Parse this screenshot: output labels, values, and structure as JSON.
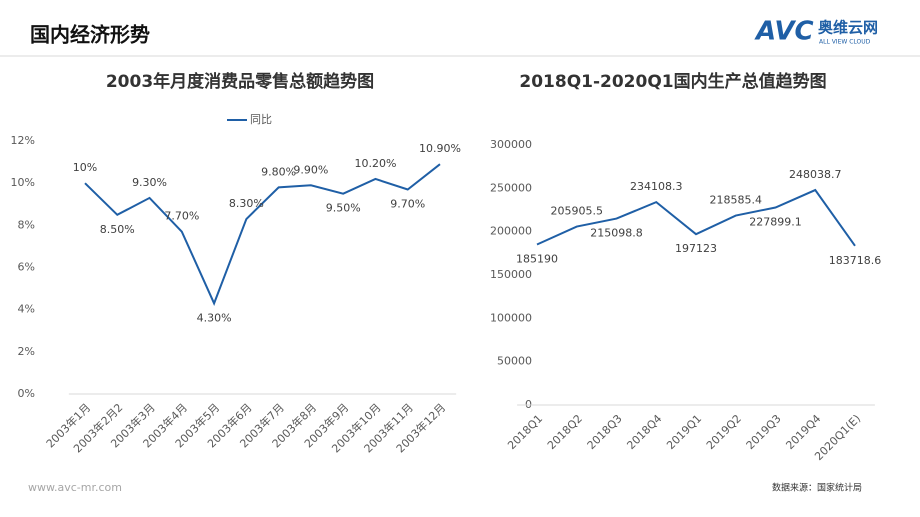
{
  "header": {
    "title": "国内经济形势",
    "logo": "AVC",
    "logo_cn": "奥维云网",
    "logo_en": "ALL VIEW CLOUD"
  },
  "chart_data": [
    {
      "type": "line",
      "title": "2003年月度消费品零售总额趋势图",
      "categories": [
        "2003年1月",
        "2003年2月2",
        "2003年3月",
        "2003年4月",
        "2003年5月",
        "2003年6月",
        "2003年7月",
        "2003年8月",
        "2003年9月",
        "2003年10月",
        "2003年11月",
        "2003年12月"
      ],
      "series": [
        {
          "name": "同比",
          "color": "#1f5fa6",
          "values": [
            10,
            8.5,
            9.3,
            7.7,
            4.3,
            8.3,
            9.8,
            9.9,
            9.5,
            10.2,
            9.7,
            10.9
          ],
          "value_labels": [
            "10%",
            "8.50%",
            "9.30%",
            "7.70%",
            "4.30%",
            "8.30%",
            "9.80%",
            "9.90%",
            "9.50%",
            "10.20%",
            "9.70%",
            "10.90%"
          ]
        }
      ],
      "ylim": [
        0,
        12
      ],
      "yticks": [
        {
          "value": 0,
          "label": "0%"
        },
        {
          "value": 2,
          "label": "2%"
        },
        {
          "value": 4,
          "label": "4%"
        },
        {
          "value": 6,
          "label": "6%"
        },
        {
          "value": 8,
          "label": "8%"
        },
        {
          "value": 10,
          "label": "10%"
        },
        {
          "value": 12,
          "label": "12%"
        }
      ],
      "legend": "top"
    },
    {
      "type": "line",
      "title": "2018Q1-2020Q1国内生产总值趋势图",
      "categories": [
        "2018Q1",
        "2018Q2",
        "2018Q3",
        "2018Q4",
        "2019Q1",
        "2019Q2",
        "2019Q3",
        "2019Q4",
        "2020Q1(E)"
      ],
      "series": [
        {
          "color": "#1f5fa6",
          "values": [
            185190,
            205905.5,
            215098.8,
            234108.3,
            197123,
            218585.4,
            227899.1,
            248038.7,
            183718.6
          ]
        }
      ],
      "ylim": [
        0,
        300000
      ],
      "yticks": [
        0,
        50000,
        100000,
        150000,
        200000,
        250000,
        300000
      ]
    }
  ],
  "footer": {
    "url": "www.avc-mr.com",
    "source": "数据来源：国家统计局"
  }
}
